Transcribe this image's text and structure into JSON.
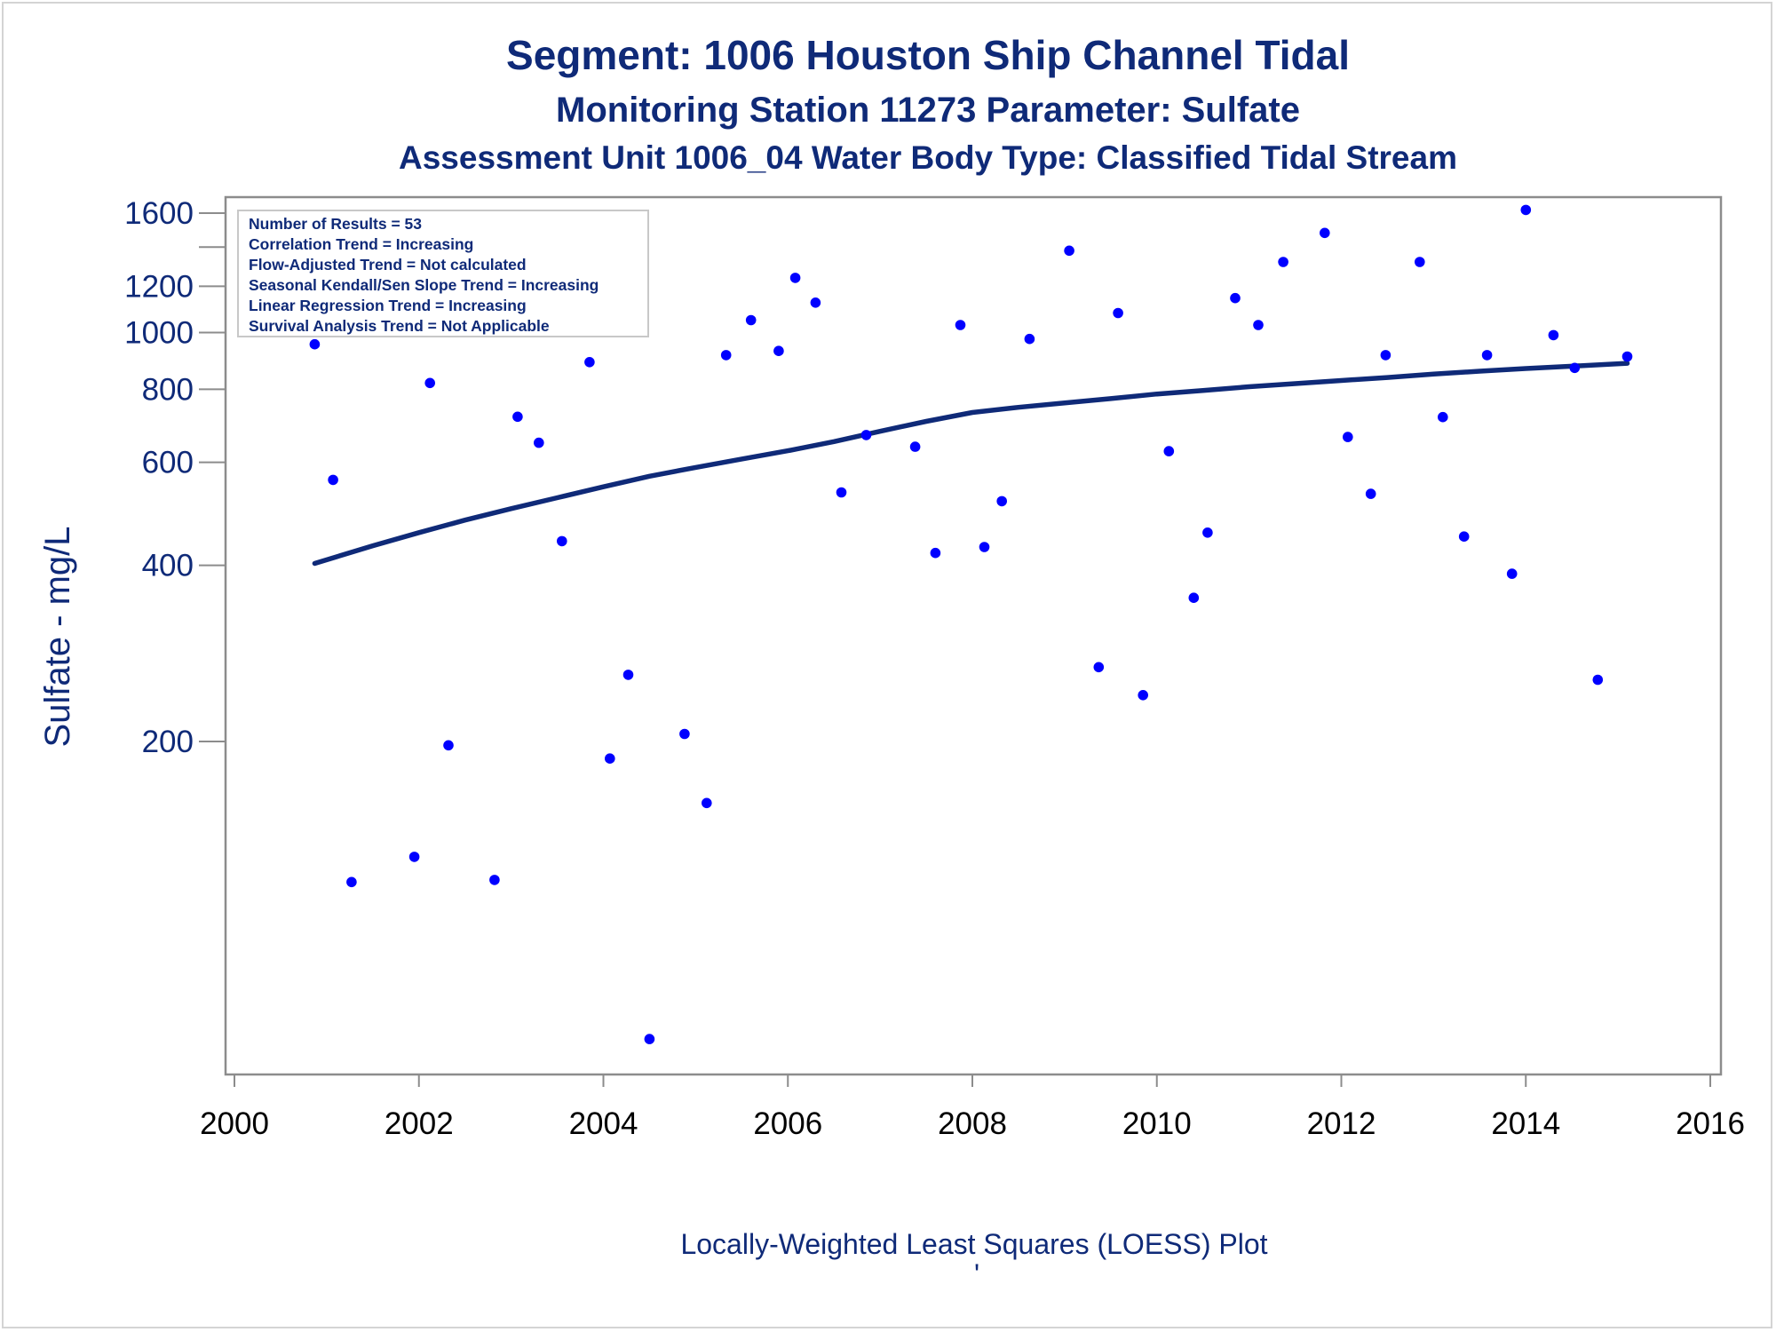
{
  "chart_data": {
    "type": "scatter",
    "title": "Segment: 1006  Houston Ship Channel Tidal",
    "subtitle": "Monitoring Station 11273 Parameter: Sulfate",
    "subtitle2": "Assessment Unit 1006_04   Water Body Type: Classified Tidal Stream",
    "ylabel": "Sulfate - mg/L",
    "xlabel": "",
    "caption": "Locally-Weighted Least Squares (LOESS) Plot",
    "footnote": "'",
    "y_scale": "log",
    "xlim": [
      2000,
      2016
    ],
    "ylim": [
      60,
      1700
    ],
    "x_ticks": [
      2000,
      2002,
      2004,
      2006,
      2008,
      2010,
      2012,
      2014,
      2016
    ],
    "x_tick_labels": [
      "2000",
      "2002",
      "2004",
      "2006",
      "2008",
      "2010",
      "2012",
      "2014",
      "2016"
    ],
    "y_ticks": [
      200,
      400,
      600,
      800,
      1000,
      1200,
      1600
    ],
    "y_tick_labels": [
      "200",
      "400",
      "600",
      "800",
      "1000",
      "1200",
      "1600"
    ],
    "y_minor_ticks": [
      1400
    ],
    "grid": false,
    "legend_position": "top-left",
    "legend_lines": [
      "Number of Results = 53",
      "Correlation Trend = Increasing",
      "Flow-Adjusted Trend = Not calculated",
      "Seasonal Kendall/Sen Slope Trend = Increasing",
      "Linear Regression Trend = Increasing",
      "Survival Analysis Trend = Not Applicable"
    ],
    "colors": {
      "points": "#0000ff",
      "trend": "#0f2a78",
      "text": "#0f2a78",
      "axis": "#8c8c8c"
    },
    "series": [
      {
        "kind": "scatter",
        "points": [
          [
            2000.87,
            955
          ],
          [
            2001.07,
            560
          ],
          [
            2001.27,
            115
          ],
          [
            2001.95,
            127
          ],
          [
            2002.12,
            820
          ],
          [
            2002.32,
            197
          ],
          [
            2002.82,
            116
          ],
          [
            2003.07,
            718
          ],
          [
            2003.3,
            648
          ],
          [
            2003.55,
            440
          ],
          [
            2003.85,
            890
          ],
          [
            2004.07,
            187
          ],
          [
            2004.27,
            260
          ],
          [
            2004.5,
            62
          ],
          [
            2004.88,
            206
          ],
          [
            2005.12,
            157
          ],
          [
            2005.33,
            915
          ],
          [
            2005.6,
            1050
          ],
          [
            2005.9,
            930
          ],
          [
            2006.08,
            1240
          ],
          [
            2006.3,
            1125
          ],
          [
            2006.58,
            533
          ],
          [
            2006.85,
            668
          ],
          [
            2007.38,
            638
          ],
          [
            2007.6,
            420
          ],
          [
            2007.87,
            1030
          ],
          [
            2008.13,
            430
          ],
          [
            2008.32,
            515
          ],
          [
            2008.62,
            975
          ],
          [
            2009.05,
            1380
          ],
          [
            2009.37,
            268
          ],
          [
            2009.58,
            1080
          ],
          [
            2009.85,
            240
          ],
          [
            2010.13,
            627
          ],
          [
            2010.4,
            352
          ],
          [
            2010.55,
            455
          ],
          [
            2010.85,
            1145
          ],
          [
            2011.1,
            1030
          ],
          [
            2011.37,
            1320
          ],
          [
            2011.82,
            1480
          ],
          [
            2012.07,
            663
          ],
          [
            2012.32,
            530
          ],
          [
            2012.48,
            915
          ],
          [
            2012.85,
            1320
          ],
          [
            2013.1,
            717
          ],
          [
            2013.33,
            448
          ],
          [
            2013.58,
            915
          ],
          [
            2013.85,
            387
          ],
          [
            2014.0,
            1620
          ],
          [
            2014.3,
            990
          ],
          [
            2014.53,
            870
          ],
          [
            2014.78,
            255
          ],
          [
            2015.1,
            910
          ]
        ]
      },
      {
        "kind": "line",
        "name": "LOESS",
        "points": [
          [
            2000.87,
            403
          ],
          [
            2001.5,
            432
          ],
          [
            2002.0,
            455
          ],
          [
            2002.5,
            478
          ],
          [
            2003.0,
            500
          ],
          [
            2003.5,
            522
          ],
          [
            2004.0,
            545
          ],
          [
            2004.5,
            568
          ],
          [
            2005.0,
            588
          ],
          [
            2005.5,
            608
          ],
          [
            2006.0,
            628
          ],
          [
            2006.5,
            651
          ],
          [
            2007.0,
            678
          ],
          [
            2007.5,
            705
          ],
          [
            2008.0,
            730
          ],
          [
            2008.5,
            745
          ],
          [
            2009.0,
            758
          ],
          [
            2009.5,
            771
          ],
          [
            2010.0,
            785
          ],
          [
            2010.5,
            796
          ],
          [
            2011.0,
            808
          ],
          [
            2011.5,
            818
          ],
          [
            2012.0,
            828
          ],
          [
            2012.5,
            838
          ],
          [
            2013.0,
            849
          ],
          [
            2013.5,
            859
          ],
          [
            2014.0,
            868
          ],
          [
            2014.5,
            876
          ],
          [
            2015.1,
            886
          ]
        ]
      }
    ]
  }
}
